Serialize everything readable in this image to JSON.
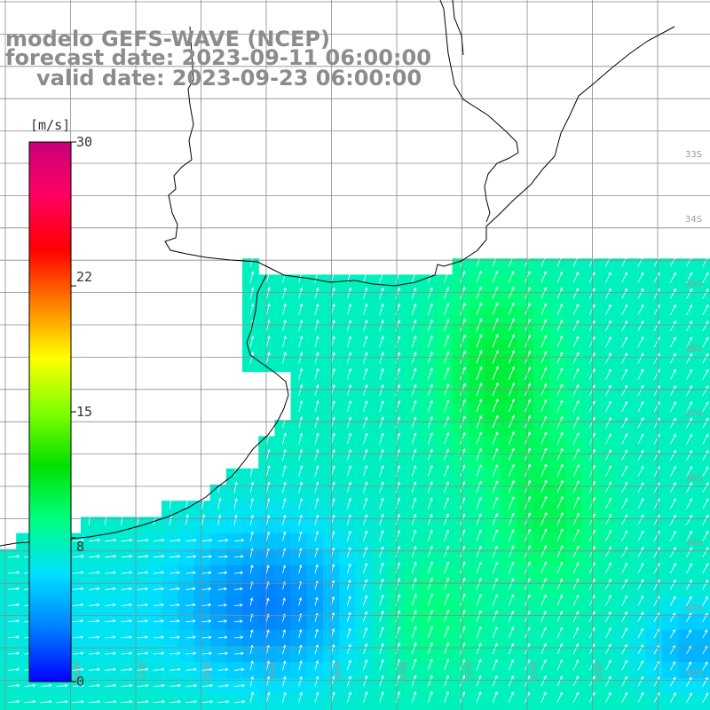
{
  "title": {
    "line1": "modelo GEFS-WAVE (NCEP)",
    "line2": "forecast date: 2023-09-11 06:00:00",
    "line3": "valid date: 2023-09-23 06:00:00"
  },
  "colorbar": {
    "unit": "[m/s]",
    "min": 0,
    "max": 30,
    "ticks": [
      "30",
      "22",
      "15",
      "8",
      "0"
    ],
    "colors": [
      "#0000ff",
      "#0080ff",
      "#00e0ff",
      "#00ff80",
      "#00e000",
      "#80ff00",
      "#ffff00",
      "#ff8000",
      "#ff0000",
      "#ff0060",
      "#c8007a"
    ]
  },
  "grid": {
    "lat_labels": [
      "33S",
      "34S",
      "35S",
      "36S",
      "37S",
      "38S",
      "39S",
      "40S",
      "41S"
    ],
    "lon_labels": [
      "58W",
      "57W",
      "56W",
      "55W",
      "54W",
      "53W",
      "52W",
      "51W",
      "50W"
    ]
  },
  "colors": {
    "land": "#ffffff",
    "gridline": "#8a8a8a",
    "coast": "#000000",
    "arrow": "#ffffff",
    "title": "#8c8c8c"
  }
}
